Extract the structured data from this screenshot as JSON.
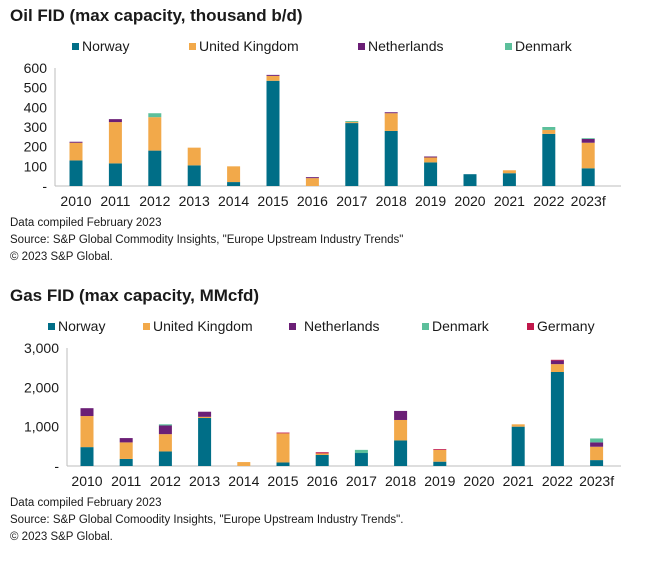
{
  "colors": {
    "Norway": "#006e87",
    "United Kingdom": "#f2a94a",
    "Netherlands": "#6b1f76",
    "Denmark": "#5cbf9b",
    "Germany": "#c0174a"
  },
  "chart_data": [
    {
      "type": "bar",
      "stacked": true,
      "title": "Oil FID (max capacity, thousand b/d)",
      "xlabel": "",
      "ylabel": "",
      "ylim": [
        0,
        600
      ],
      "yticks": [
        0,
        100,
        200,
        300,
        400,
        500,
        600
      ],
      "ytick_labels": [
        "-",
        "100",
        "200",
        "300",
        "400",
        "500",
        "600"
      ],
      "legend": [
        "Norway",
        "United Kingdom",
        "Netherlands",
        "Denmark"
      ],
      "legend_position": "top",
      "categories": [
        "2010",
        "2011",
        "2012",
        "2013",
        "2014",
        "2015",
        "2016",
        "2017",
        "2018",
        "2019",
        "2020",
        "2021",
        "2022",
        "2023f"
      ],
      "series": [
        {
          "name": "Norway",
          "values": [
            130,
            115,
            180,
            105,
            20,
            535,
            0,
            320,
            280,
            120,
            60,
            65,
            265,
            90
          ]
        },
        {
          "name": "United Kingdom",
          "values": [
            90,
            210,
            170,
            90,
            80,
            25,
            40,
            5,
            90,
            25,
            0,
            15,
            20,
            130
          ]
        },
        {
          "name": "Netherlands",
          "values": [
            5,
            15,
            0,
            0,
            0,
            5,
            5,
            0,
            5,
            5,
            0,
            0,
            0,
            20
          ]
        },
        {
          "name": "Denmark",
          "values": [
            0,
            0,
            20,
            0,
            0,
            0,
            0,
            5,
            0,
            0,
            0,
            0,
            15,
            3
          ]
        }
      ],
      "footnotes": [
        "Data compiled February 2023",
        "Source: S&P Global Commodity Insights, \"Europe Upstream Industry Trends\"",
        "© 2023 S&P Global."
      ]
    },
    {
      "type": "bar",
      "stacked": true,
      "title": "Gas FID (max capacity, MMcfd)",
      "xlabel": "",
      "ylabel": "",
      "ylim": [
        0,
        3000
      ],
      "yticks": [
        0,
        1000,
        2000,
        3000
      ],
      "ytick_labels": [
        "-",
        "1,000",
        "2,000",
        "3,000"
      ],
      "legend": [
        "Norway",
        "United Kingdom",
        "Netherlands",
        "Denmark",
        "Germany"
      ],
      "legend_position": "top",
      "categories": [
        "2010",
        "2011",
        "2012",
        "2013",
        "2014",
        "2015",
        "2016",
        "2017",
        "2018",
        "2019",
        "2020",
        "2021",
        "2022",
        "2023f"
      ],
      "series": [
        {
          "name": "Norway",
          "values": [
            480,
            180,
            370,
            1220,
            0,
            90,
            280,
            330,
            650,
            110,
            0,
            1000,
            2390,
            150
          ]
        },
        {
          "name": "United Kingdom",
          "values": [
            790,
            420,
            440,
            30,
            100,
            740,
            40,
            0,
            520,
            300,
            0,
            60,
            200,
            340
          ]
        },
        {
          "name": "Netherlands",
          "values": [
            200,
            110,
            220,
            130,
            0,
            0,
            0,
            0,
            230,
            0,
            0,
            0,
            90,
            110
          ]
        },
        {
          "name": "Denmark",
          "values": [
            0,
            0,
            30,
            0,
            0,
            0,
            0,
            80,
            0,
            0,
            0,
            0,
            0,
            100
          ]
        },
        {
          "name": "Germany",
          "values": [
            0,
            0,
            0,
            0,
            0,
            20,
            30,
            0,
            0,
            20,
            0,
            0,
            20,
            0
          ]
        }
      ],
      "footnotes": [
        "Data compiled February 2023",
        "Source: S&P Global Comoodity Insights, \"Europe Upstream Industry Trends\".",
        "© 2023 S&P Global."
      ]
    }
  ]
}
